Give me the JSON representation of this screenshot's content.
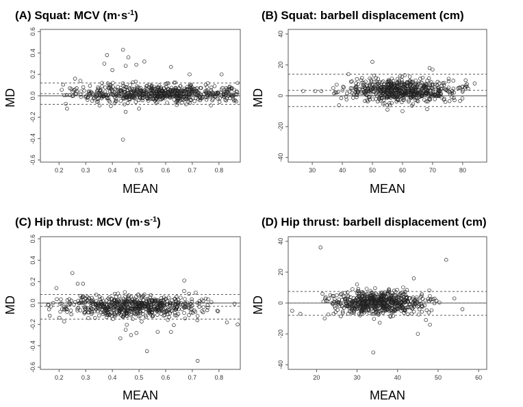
{
  "chart_data": [
    {
      "type": "scatter",
      "panel": "A",
      "title_text": "(A) Squat: MCV (m·s",
      "title_sup": "-1",
      "title_close": ")",
      "xlabel": "MEAN",
      "ylabel": "MD",
      "xlim": [
        0.13,
        0.88
      ],
      "ylim": [
        -0.62,
        0.62
      ],
      "xticks": [
        0.2,
        0.3,
        0.4,
        0.5,
        0.6,
        0.7,
        0.8
      ],
      "xtick_labels": [
        "0.2",
        "0.3",
        "0.4",
        "0.5",
        "0.6",
        "0.7",
        "0.8"
      ],
      "yticks": [
        -0.6,
        -0.4,
        -0.2,
        0.0,
        0.2,
        0.4,
        0.6
      ],
      "ytick_labels": [
        "-0.6",
        "-0.4",
        "-0.2",
        "0.0",
        "0.2",
        "0.4",
        "0.6"
      ],
      "bias": 0.02,
      "loa_upper": 0.12,
      "loa_lower": -0.08,
      "cloud": {
        "x_center": 0.58,
        "x_spread": 0.16,
        "x_min": 0.2,
        "x_max": 0.87,
        "y_center": 0.02,
        "y_spread": 0.04,
        "n": 650
      },
      "outliers": [
        [
          0.44,
          0.43
        ],
        [
          0.38,
          0.38
        ],
        [
          0.37,
          0.3
        ],
        [
          0.46,
          0.36
        ],
        [
          0.4,
          0.24
        ],
        [
          0.45,
          0.28
        ],
        [
          0.52,
          0.32
        ],
        [
          0.49,
          0.29
        ],
        [
          0.62,
          0.27
        ],
        [
          0.44,
          -0.41
        ],
        [
          0.45,
          -0.15
        ],
        [
          0.26,
          0.16
        ],
        [
          0.28,
          0.14
        ],
        [
          0.23,
          -0.12
        ],
        [
          0.69,
          0.2
        ],
        [
          0.81,
          0.2
        ],
        [
          0.87,
          0.12
        ],
        [
          0.5,
          -0.12
        ]
      ]
    },
    {
      "type": "scatter",
      "panel": "B",
      "title_text": "(B) Squat: barbell displacement (cm)",
      "xlabel": "MEAN",
      "ylabel": "MD",
      "xlim": [
        22,
        88
      ],
      "ylim": [
        -43,
        43
      ],
      "xticks": [
        30,
        40,
        50,
        60,
        70,
        80
      ],
      "xtick_labels": [
        "30",
        "40",
        "50",
        "60",
        "70",
        "80"
      ],
      "yticks": [
        -40,
        -20,
        0,
        20,
        40
      ],
      "ytick_labels": [
        "-40",
        "-20",
        "0",
        "20",
        "40"
      ],
      "bias": 3.5,
      "loa_upper": 14,
      "loa_lower": -7,
      "cloud": {
        "x_center": 60,
        "x_spread": 9,
        "x_min": 37,
        "x_max": 82,
        "y_center": 3.5,
        "y_spread": 3.8,
        "n": 650
      },
      "outliers": [
        [
          50,
          22
        ],
        [
          27,
          3
        ],
        [
          31,
          3
        ],
        [
          33,
          3
        ],
        [
          69,
          18
        ],
        [
          70,
          17
        ],
        [
          81,
          10
        ],
        [
          84,
          8
        ],
        [
          80,
          6
        ],
        [
          37,
          5
        ],
        [
          42,
          14
        ],
        [
          55,
          -9
        ],
        [
          60,
          -10
        ]
      ]
    },
    {
      "type": "scatter",
      "panel": "C",
      "title_text": "(C) Hip thrust: MCV (m·s",
      "title_sup": "-1",
      "title_close": ")",
      "xlabel": "MEAN",
      "ylabel": "MD",
      "xlim": [
        0.13,
        0.88
      ],
      "ylim": [
        -0.62,
        0.62
      ],
      "xticks": [
        0.2,
        0.3,
        0.4,
        0.5,
        0.6,
        0.7,
        0.8
      ],
      "xtick_labels": [
        "0.2",
        "0.3",
        "0.4",
        "0.5",
        "0.6",
        "0.7",
        "0.8"
      ],
      "yticks": [
        -0.6,
        -0.4,
        -0.2,
        0.0,
        0.2,
        0.4,
        0.6
      ],
      "ytick_labels": [
        "-0.6",
        "-0.4",
        "-0.2",
        "0.0",
        "0.2",
        "0.4",
        "0.6"
      ],
      "bias": -0.03,
      "loa_upper": 0.08,
      "loa_lower": -0.15,
      "cloud": {
        "x_center": 0.47,
        "x_spread": 0.13,
        "x_min": 0.15,
        "x_max": 0.88,
        "y_center": -0.03,
        "y_spread": 0.05,
        "n": 650
      },
      "outliers": [
        [
          0.25,
          0.28
        ],
        [
          0.29,
          0.18
        ],
        [
          0.27,
          0.18
        ],
        [
          0.67,
          0.21
        ],
        [
          0.72,
          -0.54
        ],
        [
          0.53,
          -0.45
        ],
        [
          0.43,
          -0.33
        ],
        [
          0.47,
          -0.3
        ],
        [
          0.49,
          -0.28
        ],
        [
          0.45,
          -0.25
        ],
        [
          0.57,
          -0.27
        ],
        [
          0.62,
          -0.27
        ],
        [
          0.83,
          -0.18
        ],
        [
          0.87,
          -0.2
        ],
        [
          0.16,
          -0.02
        ],
        [
          0.19,
          0.14
        ]
      ]
    },
    {
      "type": "scatter",
      "panel": "D",
      "title_text": "(D) Hip thrust: barbell displacement (cm)",
      "xlabel": "MEAN",
      "ylabel": "MD",
      "xlim": [
        13,
        62
      ],
      "ylim": [
        -43,
        43
      ],
      "xticks": [
        20,
        30,
        40,
        50,
        60
      ],
      "xtick_labels": [
        "20",
        "30",
        "40",
        "50",
        "60"
      ],
      "yticks": [
        -40,
        -20,
        0,
        20,
        40
      ],
      "ytick_labels": [
        "-40",
        "-20",
        "0",
        "20",
        "40"
      ],
      "bias": 0,
      "loa_upper": 7.5,
      "loa_lower": -8,
      "cloud": {
        "x_center": 35,
        "x_spread": 5.5,
        "x_min": 18,
        "x_max": 52,
        "y_center": 0,
        "y_spread": 3.8,
        "n": 650
      },
      "outliers": [
        [
          21,
          36
        ],
        [
          52,
          28
        ],
        [
          34,
          -32
        ],
        [
          44,
          16
        ],
        [
          45,
          -20
        ],
        [
          47,
          -11
        ],
        [
          48,
          -14
        ],
        [
          14,
          -5
        ],
        [
          16,
          -7
        ],
        [
          22,
          -10
        ],
        [
          54,
          3
        ],
        [
          56,
          -4
        ]
      ]
    }
  ]
}
